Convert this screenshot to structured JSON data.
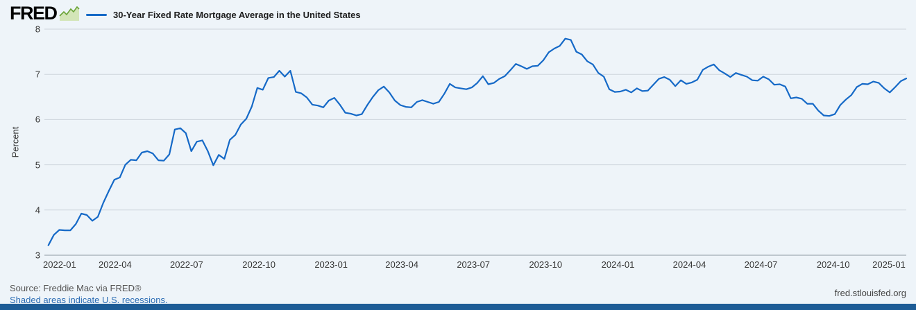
{
  "header": {
    "logo_text": "FRED",
    "legend_label": "30-Year Fixed Rate Mortgage Average in the United States"
  },
  "footer": {
    "source": "Source: Freddie Mac via FRED®",
    "recession_note": "Shaded areas indicate U.S. recessions.",
    "site": "fred.stlouisfed.org"
  },
  "colors": {
    "background": "#eef4f9",
    "line": "#1569c7",
    "grid": "#cdd5dc",
    "axis": "#8f9aa3",
    "link": "#2a6cb4",
    "footer_bar": "#1d5c96",
    "logo_sparkline": "#6aa437",
    "logo_sparkline_fill": "#d3e5b8"
  },
  "chart_data": {
    "type": "line",
    "title": "30-Year Fixed Rate Mortgage Average in the United States",
    "ylabel": "Percent",
    "ylim": [
      3,
      8
    ],
    "yticks": [
      3,
      4,
      5,
      6,
      7,
      8
    ],
    "x_ticks": [
      "2022-01",
      "2022-04",
      "2022-07",
      "2022-10",
      "2023-01",
      "2023-04",
      "2023-07",
      "2023-10",
      "2024-01",
      "2024-04",
      "2024-07",
      "2024-10",
      "2025-01"
    ],
    "xlim": [
      "2022-01-01",
      "2025-01-02"
    ],
    "frequency": "weekly",
    "start_date": "2022-01-06",
    "end_date": "2025-01-02",
    "grid": true,
    "legend_position": "top-left",
    "values": [
      3.22,
      3.45,
      3.56,
      3.55,
      3.55,
      3.69,
      3.92,
      3.89,
      3.76,
      3.85,
      4.16,
      4.42,
      4.67,
      4.72,
      5.0,
      5.11,
      5.1,
      5.27,
      5.3,
      5.25,
      5.1,
      5.09,
      5.23,
      5.78,
      5.81,
      5.7,
      5.3,
      5.51,
      5.54,
      5.3,
      4.99,
      5.22,
      5.13,
      5.55,
      5.66,
      5.89,
      6.02,
      6.29,
      6.7,
      6.66,
      6.92,
      6.94,
      7.08,
      6.95,
      7.08,
      6.61,
      6.58,
      6.49,
      6.33,
      6.31,
      6.27,
      6.42,
      6.48,
      6.33,
      6.15,
      6.13,
      6.09,
      6.12,
      6.32,
      6.5,
      6.65,
      6.73,
      6.6,
      6.42,
      6.32,
      6.28,
      6.27,
      6.39,
      6.43,
      6.39,
      6.35,
      6.39,
      6.57,
      6.79,
      6.71,
      6.69,
      6.67,
      6.71,
      6.81,
      6.96,
      6.78,
      6.81,
      6.9,
      6.96,
      7.09,
      7.23,
      7.18,
      7.12,
      7.18,
      7.19,
      7.31,
      7.49,
      7.57,
      7.63,
      7.79,
      7.76,
      7.5,
      7.44,
      7.29,
      7.22,
      7.03,
      6.95,
      6.67,
      6.61,
      6.62,
      6.66,
      6.6,
      6.69,
      6.63,
      6.64,
      6.77,
      6.9,
      6.94,
      6.88,
      6.74,
      6.87,
      6.79,
      6.82,
      6.88,
      7.1,
      7.17,
      7.22,
      7.09,
      7.02,
      6.94,
      7.03,
      6.99,
      6.95,
      6.87,
      6.86,
      6.95,
      6.89,
      6.77,
      6.78,
      6.73,
      6.47,
      6.49,
      6.46,
      6.35,
      6.35,
      6.2,
      6.09,
      6.08,
      6.12,
      6.32,
      6.44,
      6.54,
      6.72,
      6.79,
      6.78,
      6.84,
      6.81,
      6.69,
      6.6,
      6.72,
      6.85,
      6.91
    ]
  }
}
